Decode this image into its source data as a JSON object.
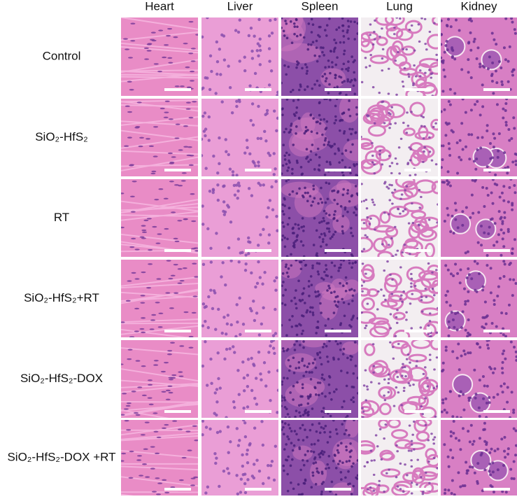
{
  "columns": [
    "Heart",
    "Liver",
    "Spleen",
    "Lung",
    "Kidney"
  ],
  "rows": [
    "Control",
    "SiO₂-HfS₂",
    "RT",
    "SiO₂-HfS₂+RT",
    "SiO₂-HfS₂-DOX",
    "SiO₂-HfS₂-DOX +RT"
  ]
}
